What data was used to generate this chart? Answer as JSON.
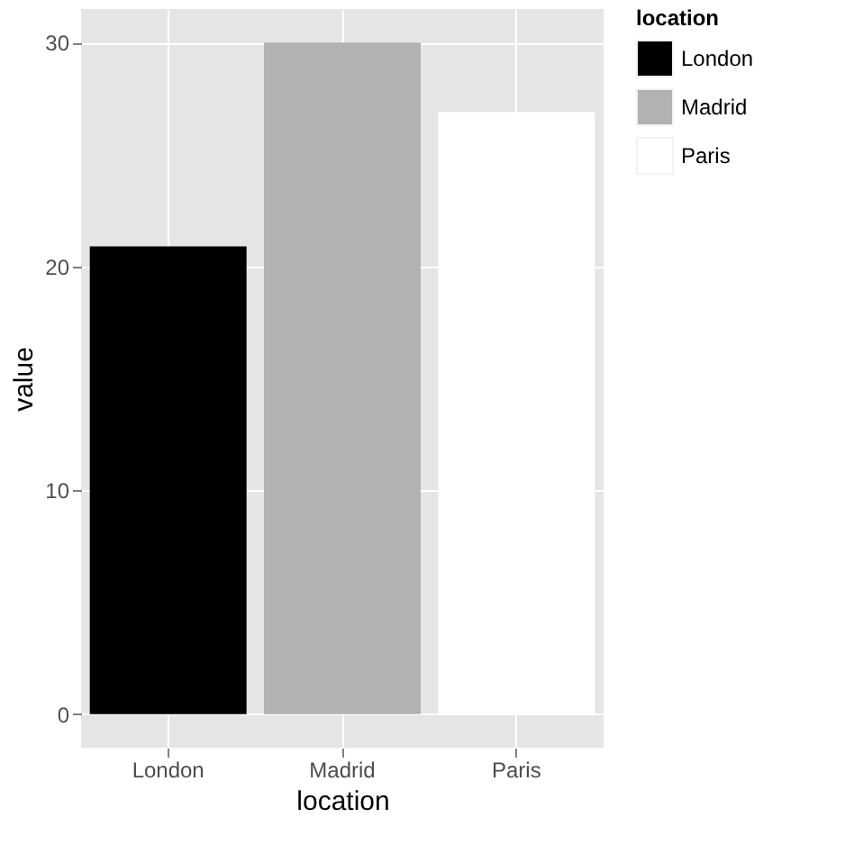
{
  "chart_data": {
    "type": "bar",
    "xlabel": "location",
    "ylabel": "value",
    "legend_title": "location",
    "categories": [
      "London",
      "Madrid",
      "Paris"
    ],
    "series": [
      {
        "name": "London",
        "color": "#000000",
        "values": [
          20.9,
          null,
          null
        ]
      },
      {
        "name": "Madrid",
        "color": "#b2b2b2",
        "values": [
          null,
          30,
          null
        ]
      },
      {
        "name": "Paris",
        "color": "#ffffff",
        "values": [
          null,
          null,
          26.9
        ]
      }
    ],
    "ylim": [
      -1.5,
      31.5
    ],
    "yticks": [
      0,
      10,
      20,
      30
    ],
    "grid": true,
    "legend": "right"
  }
}
